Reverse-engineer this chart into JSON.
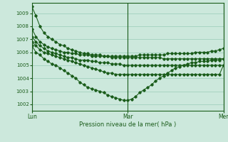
{
  "bg_color": "#cce8dc",
  "grid_color": "#99ccb8",
  "line_color": "#1a5c1a",
  "marker_color": "#1a5c1a",
  "title": "Pression niveau de la mer( hPa )",
  "ylim": [
    1001.5,
    1009.8
  ],
  "yticks": [
    1002,
    1003,
    1004,
    1005,
    1006,
    1007,
    1008,
    1009
  ],
  "n_points": 97,
  "marker_size": 1.8,
  "line_width": 0.75,
  "series": [
    {
      "x": [
        0,
        2,
        4,
        6,
        8,
        10,
        12,
        14,
        16,
        18,
        20,
        22,
        24,
        26,
        28,
        30,
        32,
        34,
        36,
        38,
        40,
        42,
        44,
        46,
        48,
        50,
        52,
        54,
        56,
        58,
        60,
        62,
        64,
        66,
        68,
        70,
        72,
        74,
        76,
        78,
        80,
        82,
        84,
        86,
        88,
        90,
        92,
        94,
        96
      ],
      "y": [
        1009.5,
        1008.8,
        1008.0,
        1007.5,
        1007.2,
        1007.0,
        1006.8,
        1006.6,
        1006.5,
        1006.3,
        1006.2,
        1006.1,
        1006.0,
        1005.9,
        1005.9,
        1005.8,
        1005.8,
        1005.8,
        1005.7,
        1005.7,
        1005.7,
        1005.7,
        1005.7,
        1005.7,
        1005.7,
        1005.7,
        1005.7,
        1005.8,
        1005.8,
        1005.8,
        1005.8,
        1005.8,
        1005.8,
        1005.8,
        1005.9,
        1005.9,
        1005.9,
        1005.9,
        1005.9,
        1005.9,
        1005.9,
        1006.0,
        1006.0,
        1006.0,
        1006.0,
        1006.1,
        1006.1,
        1006.2,
        1006.3
      ]
    },
    {
      "x": [
        0,
        2,
        4,
        6,
        8,
        10,
        12,
        14,
        16,
        18,
        20,
        22,
        24,
        26,
        28,
        30,
        32,
        34,
        36,
        38,
        40,
        42,
        44,
        46,
        48,
        50,
        52,
        54,
        56,
        58,
        60,
        62,
        64,
        66,
        68,
        70,
        72,
        74,
        76,
        78,
        80,
        82,
        84,
        86,
        88,
        90,
        92,
        94,
        96
      ],
      "y": [
        1007.8,
        1007.2,
        1006.8,
        1006.6,
        1006.4,
        1006.3,
        1006.2,
        1006.1,
        1006.0,
        1006.0,
        1005.9,
        1005.9,
        1005.8,
        1005.8,
        1005.8,
        1005.7,
        1005.7,
        1005.7,
        1005.7,
        1005.7,
        1005.6,
        1005.6,
        1005.6,
        1005.6,
        1005.6,
        1005.6,
        1005.6,
        1005.6,
        1005.6,
        1005.6,
        1005.6,
        1005.6,
        1005.6,
        1005.5,
        1005.5,
        1005.5,
        1005.5,
        1005.5,
        1005.5,
        1005.5,
        1005.5,
        1005.5,
        1005.5,
        1005.5,
        1005.5,
        1005.5,
        1005.5,
        1005.5,
        1005.5
      ]
    },
    {
      "x": [
        0,
        2,
        4,
        6,
        8,
        10,
        12,
        14,
        16,
        18,
        20,
        22,
        24,
        26,
        28,
        30,
        32,
        34,
        36,
        38,
        40,
        42,
        44,
        46,
        48,
        50,
        52,
        54,
        56,
        58,
        60,
        62,
        64,
        66,
        68,
        70,
        72,
        74,
        76,
        78,
        80,
        82,
        84,
        86,
        88,
        90,
        92,
        94,
        96
      ],
      "y": [
        1007.2,
        1006.8,
        1006.5,
        1006.3,
        1006.1,
        1006.0,
        1005.9,
        1005.8,
        1005.7,
        1005.6,
        1005.6,
        1005.5,
        1005.4,
        1005.4,
        1005.4,
        1005.3,
        1005.3,
        1005.2,
        1005.2,
        1005.2,
        1005.1,
        1005.1,
        1005.1,
        1005.0,
        1005.0,
        1005.0,
        1005.0,
        1005.0,
        1005.0,
        1005.0,
        1005.0,
        1005.0,
        1005.0,
        1005.0,
        1005.0,
        1005.0,
        1005.0,
        1005.0,
        1005.0,
        1005.0,
        1005.0,
        1005.0,
        1005.0,
        1005.0,
        1005.0,
        1005.0,
        1005.0,
        1005.0,
        1005.0
      ]
    },
    {
      "x": [
        0,
        2,
        4,
        6,
        8,
        10,
        12,
        14,
        16,
        18,
        20,
        22,
        24,
        26,
        28,
        30,
        32,
        34,
        36,
        38,
        40,
        42,
        44,
        46,
        48,
        50,
        52,
        54,
        56,
        58,
        60,
        62,
        64,
        66,
        68,
        70,
        72,
        74,
        76,
        78,
        80,
        82,
        84,
        86,
        88,
        90,
        92,
        94,
        96
      ],
      "y": [
        1006.8,
        1006.5,
        1006.2,
        1006.0,
        1005.9,
        1005.8,
        1005.7,
        1005.6,
        1005.5,
        1005.4,
        1005.3,
        1005.2,
        1005.1,
        1005.0,
        1004.9,
        1004.8,
        1004.7,
        1004.6,
        1004.5,
        1004.4,
        1004.4,
        1004.3,
        1004.3,
        1004.3,
        1004.3,
        1004.3,
        1004.3,
        1004.3,
        1004.3,
        1004.3,
        1004.3,
        1004.3,
        1004.3,
        1004.3,
        1004.3,
        1004.3,
        1004.3,
        1004.3,
        1004.3,
        1004.3,
        1004.3,
        1004.3,
        1004.3,
        1004.3,
        1004.3,
        1004.3,
        1004.3,
        1004.3,
        1005.0
      ]
    },
    {
      "x": [
        0,
        2,
        4,
        6,
        8,
        10,
        12,
        14,
        16,
        18,
        20,
        22,
        24,
        26,
        28,
        30,
        32,
        34,
        36,
        38,
        40,
        42,
        44,
        46,
        48,
        50,
        52,
        54,
        56,
        58,
        60,
        62,
        64,
        66,
        68,
        70,
        72,
        74,
        76,
        78,
        80,
        82,
        84,
        86,
        88,
        90,
        92,
        94,
        96
      ],
      "y": [
        1006.5,
        1006.0,
        1005.8,
        1005.5,
        1005.3,
        1005.1,
        1005.0,
        1004.8,
        1004.6,
        1004.4,
        1004.2,
        1004.0,
        1003.7,
        1003.5,
        1003.3,
        1003.2,
        1003.1,
        1003.0,
        1002.9,
        1002.7,
        1002.6,
        1002.5,
        1002.4,
        1002.3,
        1002.3,
        1002.4,
        1002.6,
        1002.9,
        1003.1,
        1003.3,
        1003.5,
        1003.8,
        1004.0,
        1004.2,
        1004.4,
        1004.6,
        1004.8,
        1004.9,
        1005.0,
        1005.1,
        1005.2,
        1005.2,
        1005.3,
        1005.3,
        1005.3,
        1005.4,
        1005.4,
        1005.4,
        1005.5
      ]
    }
  ],
  "xtick_positions": [
    0,
    48,
    96
  ],
  "xtick_labels": [
    "Lun",
    "Mar",
    "Mer"
  ],
  "vlines": [
    48,
    96
  ]
}
